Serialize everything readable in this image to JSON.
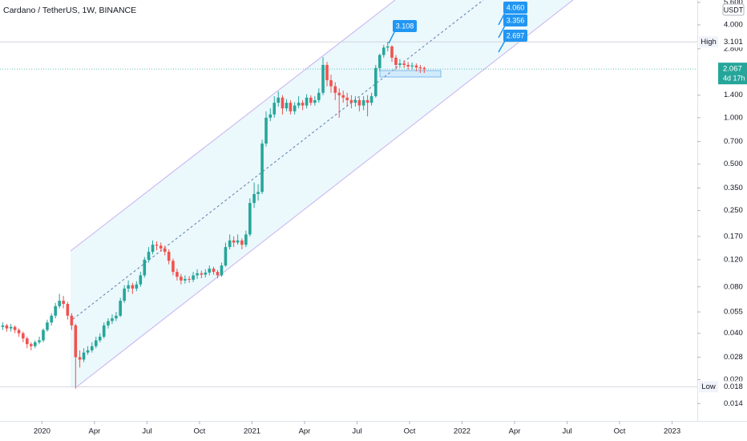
{
  "chart_data": {
    "type": "candlestick",
    "title": "Cardano / TetherUS, 1W, BINANCE",
    "y_unit": "USDT",
    "log_scale": true,
    "up_color": "#26a69a",
    "down_color": "#ef5350",
    "x": [
      2019.813,
      2019.832,
      2019.852,
      2019.871,
      2019.89,
      2019.91,
      2019.929,
      2019.948,
      2019.967,
      2019.987,
      2020.006,
      2020.025,
      2020.045,
      2020.064,
      2020.083,
      2020.102,
      2020.122,
      2020.141,
      2020.16,
      2020.18,
      2020.199,
      2020.218,
      2020.238,
      2020.257,
      2020.276,
      2020.295,
      2020.315,
      2020.334,
      2020.353,
      2020.373,
      2020.392,
      2020.411,
      2020.431,
      2020.45,
      2020.469,
      2020.488,
      2020.508,
      2020.527,
      2020.546,
      2020.566,
      2020.585,
      2020.604,
      2020.624,
      2020.643,
      2020.662,
      2020.681,
      2020.701,
      2020.72,
      2020.739,
      2020.759,
      2020.778,
      2020.797,
      2020.817,
      2020.836,
      2020.855,
      2020.874,
      2020.894,
      2020.913,
      2020.932,
      2020.952,
      2020.971,
      2020.99,
      2021.01,
      2021.029,
      2021.048,
      2021.067,
      2021.087,
      2021.106,
      2021.125,
      2021.145,
      2021.164,
      2021.183,
      2021.203,
      2021.222,
      2021.241,
      2021.26,
      2021.28,
      2021.299,
      2021.318,
      2021.338,
      2021.357,
      2021.376,
      2021.396,
      2021.415,
      2021.434,
      2021.453,
      2021.473,
      2021.492,
      2021.511,
      2021.531,
      2021.55,
      2021.569,
      2021.589,
      2021.608,
      2021.627,
      2021.646,
      2021.666,
      2021.685,
      2021.704,
      2021.724,
      2021.743,
      2021.762,
      2021.782,
      2021.801,
      2021.82
    ],
    "open": [
      0.044,
      0.045,
      0.043,
      0.044,
      0.042,
      0.04,
      0.037,
      0.034,
      0.033,
      0.035,
      0.036,
      0.042,
      0.047,
      0.052,
      0.06,
      0.065,
      0.062,
      0.052,
      0.045,
      0.028,
      0.027,
      0.03,
      0.031,
      0.033,
      0.036,
      0.038,
      0.045,
      0.048,
      0.05,
      0.052,
      0.065,
      0.078,
      0.082,
      0.078,
      0.083,
      0.095,
      0.12,
      0.135,
      0.15,
      0.148,
      0.142,
      0.135,
      0.118,
      0.1,
      0.093,
      0.088,
      0.09,
      0.089,
      0.095,
      0.098,
      0.096,
      0.099,
      0.105,
      0.1,
      0.095,
      0.11,
      0.145,
      0.16,
      0.155,
      0.16,
      0.15,
      0.175,
      0.28,
      0.32,
      0.33,
      0.68,
      1.0,
      1.05,
      1.25,
      1.35,
      1.15,
      1.25,
      1.1,
      1.2,
      1.25,
      1.2,
      1.35,
      1.25,
      1.3,
      1.45,
      2.2,
      1.75,
      1.6,
      1.45,
      1.4,
      1.35,
      1.3,
      1.25,
      1.3,
      1.2,
      1.3,
      1.25,
      1.38,
      2.1,
      2.55,
      2.85,
      2.9,
      2.45,
      2.2,
      2.25,
      2.2,
      2.15,
      2.18,
      2.12,
      2.1
    ],
    "high": [
      0.047,
      0.046,
      0.046,
      0.045,
      0.043,
      0.041,
      0.038,
      0.035,
      0.036,
      0.038,
      0.043,
      0.049,
      0.054,
      0.063,
      0.072,
      0.07,
      0.064,
      0.054,
      0.046,
      0.031,
      0.032,
      0.033,
      0.035,
      0.038,
      0.04,
      0.047,
      0.05,
      0.053,
      0.055,
      0.068,
      0.082,
      0.088,
      0.085,
      0.087,
      0.1,
      0.125,
      0.145,
      0.16,
      0.158,
      0.155,
      0.148,
      0.14,
      0.122,
      0.105,
      0.097,
      0.095,
      0.094,
      0.1,
      0.104,
      0.102,
      0.104,
      0.11,
      0.108,
      0.103,
      0.115,
      0.155,
      0.175,
      0.17,
      0.175,
      0.165,
      0.185,
      0.3,
      0.38,
      0.37,
      0.72,
      1.1,
      1.15,
      1.38,
      1.48,
      1.4,
      1.32,
      1.3,
      1.26,
      1.38,
      1.3,
      1.42,
      1.4,
      1.38,
      1.55,
      2.47,
      2.3,
      1.9,
      1.7,
      1.55,
      1.5,
      1.45,
      1.4,
      1.38,
      1.35,
      1.38,
      1.4,
      1.45,
      2.2,
      2.6,
      2.97,
      3.101,
      2.95,
      2.55,
      2.4,
      2.35,
      2.3,
      2.28,
      2.25,
      2.2,
      2.15
    ],
    "low": [
      0.042,
      0.041,
      0.041,
      0.04,
      0.038,
      0.035,
      0.032,
      0.031,
      0.032,
      0.034,
      0.035,
      0.041,
      0.045,
      0.05,
      0.058,
      0.058,
      0.049,
      0.042,
      0.0175,
      0.024,
      0.026,
      0.029,
      0.03,
      0.032,
      0.035,
      0.037,
      0.043,
      0.046,
      0.048,
      0.051,
      0.063,
      0.074,
      0.072,
      0.075,
      0.08,
      0.092,
      0.115,
      0.13,
      0.138,
      0.135,
      0.128,
      0.112,
      0.095,
      0.088,
      0.083,
      0.084,
      0.085,
      0.086,
      0.09,
      0.091,
      0.092,
      0.095,
      0.096,
      0.091,
      0.093,
      0.108,
      0.14,
      0.145,
      0.15,
      0.14,
      0.145,
      0.17,
      0.26,
      0.29,
      0.32,
      0.65,
      0.95,
      1.0,
      1.18,
      1.05,
      1.1,
      1.05,
      1.05,
      1.15,
      1.12,
      1.15,
      1.2,
      1.2,
      1.25,
      1.4,
      1.6,
      1.45,
      1.3,
      1.0,
      1.25,
      1.2,
      1.15,
      1.18,
      1.1,
      1.12,
      1.02,
      1.2,
      1.35,
      2.0,
      2.45,
      2.7,
      2.3,
      2.05,
      2.1,
      2.1,
      2.05,
      2.05,
      2.0,
      1.95,
      1.95
    ],
    "close": [
      0.045,
      0.043,
      0.044,
      0.042,
      0.04,
      0.037,
      0.034,
      0.033,
      0.035,
      0.036,
      0.042,
      0.047,
      0.052,
      0.06,
      0.065,
      0.062,
      0.052,
      0.045,
      0.028,
      0.027,
      0.03,
      0.031,
      0.033,
      0.036,
      0.038,
      0.045,
      0.048,
      0.05,
      0.052,
      0.065,
      0.078,
      0.082,
      0.078,
      0.083,
      0.095,
      0.12,
      0.135,
      0.15,
      0.148,
      0.142,
      0.135,
      0.118,
      0.1,
      0.093,
      0.088,
      0.09,
      0.089,
      0.095,
      0.098,
      0.096,
      0.099,
      0.105,
      0.1,
      0.095,
      0.11,
      0.145,
      0.16,
      0.155,
      0.16,
      0.15,
      0.175,
      0.28,
      0.32,
      0.33,
      0.68,
      1.0,
      1.05,
      1.25,
      1.35,
      1.15,
      1.25,
      1.1,
      1.2,
      1.25,
      1.2,
      1.35,
      1.25,
      1.3,
      1.45,
      2.2,
      1.75,
      1.6,
      1.45,
      1.4,
      1.35,
      1.3,
      1.25,
      1.3,
      1.2,
      1.3,
      1.25,
      1.38,
      2.1,
      2.55,
      2.85,
      2.9,
      2.45,
      2.2,
      2.25,
      2.2,
      2.15,
      2.18,
      2.12,
      2.1,
      2.067
    ],
    "xlim": [
      2019.8,
      2023.12
    ],
    "ylim": [
      0.0108,
      5.8
    ],
    "xticks": [
      2020,
      {
        "value": 2020.25,
        "label": "Apr"
      },
      {
        "value": 2020.5,
        "label": "Jul"
      },
      {
        "value": 2020.75,
        "label": "Oct"
      },
      2021,
      {
        "value": 2021.25,
        "label": "Apr"
      },
      {
        "value": 2021.5,
        "label": "Jul"
      },
      {
        "value": 2021.75,
        "label": "Oct"
      },
      2022,
      {
        "value": 2022.25,
        "label": "Apr"
      },
      {
        "value": 2022.5,
        "label": "Jul"
      },
      {
        "value": 2022.75,
        "label": "Oct"
      },
      2023
    ],
    "yticks": [
      {
        "value": 5.6,
        "label": "5.600"
      },
      {
        "value": 4,
        "label": "4.000"
      },
      {
        "value": 2.8,
        "label": "2.800"
      },
      {
        "value": 1.4,
        "label": "1.400"
      },
      {
        "value": 1,
        "label": "1.000"
      },
      {
        "value": 0.7,
        "label": "0.700"
      },
      {
        "value": 0.5,
        "label": "0.500"
      },
      {
        "value": 0.35,
        "label": "0.350"
      },
      {
        "value": 0.25,
        "label": "0.250"
      },
      {
        "value": 0.17,
        "label": "0.170"
      },
      {
        "value": 0.12,
        "label": "0.120"
      },
      {
        "value": 0.08,
        "label": "0.080"
      },
      {
        "value": 0.055,
        "label": "0.055"
      },
      {
        "value": 0.04,
        "label": "0.040"
      },
      {
        "value": 0.028,
        "label": "0.028"
      },
      {
        "value": 0.02,
        "label": "0.020"
      },
      {
        "value": 0.014,
        "label": "0.014"
      }
    ],
    "price_lines": [
      {
        "label": "High",
        "value": 3.101
      },
      {
        "label": "Low",
        "value": 0.018
      }
    ],
    "last_price": {
      "value": 2.067,
      "countdown": "4d 17h",
      "color": "#26a69a"
    },
    "annotations": [
      "3.108",
      "4.060",
      "3.356",
      "2.697"
    ]
  }
}
